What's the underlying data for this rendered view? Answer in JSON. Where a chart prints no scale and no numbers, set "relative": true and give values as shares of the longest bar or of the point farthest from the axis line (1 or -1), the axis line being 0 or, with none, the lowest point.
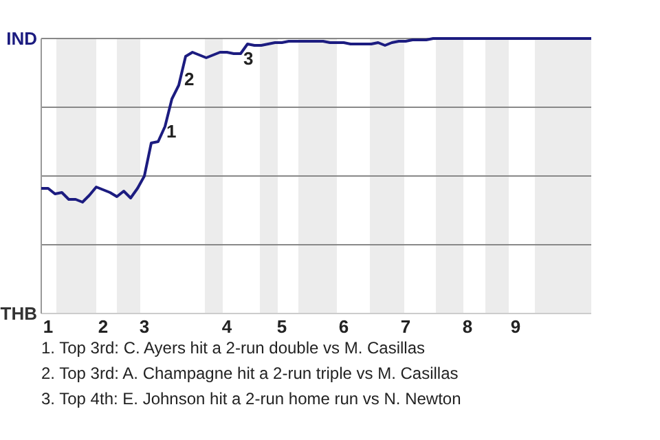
{
  "chart_data": {
    "type": "line",
    "relative": true,
    "categories": [
      null,
      "1",
      null,
      null,
      null,
      null,
      null,
      null,
      null,
      "2",
      null,
      null,
      null,
      null,
      null,
      "3",
      null,
      null,
      null,
      null,
      null,
      null,
      null,
      null,
      null,
      null,
      null,
      "4",
      null,
      null,
      null,
      null,
      null,
      null,
      null,
      "5",
      null,
      null,
      null,
      null,
      null,
      null,
      null,
      null,
      "6",
      null,
      null,
      null,
      null,
      null,
      null,
      null,
      null,
      "7",
      null,
      null,
      null,
      null,
      null,
      null,
      null,
      null,
      "8",
      null,
      null,
      null,
      null,
      null,
      null,
      "9",
      null,
      null,
      null,
      null,
      null,
      null,
      null,
      null,
      null,
      null,
      null
    ],
    "series": [
      {
        "color": "#1c1c80",
        "values": [
          0.455,
          0.455,
          0.435,
          0.44,
          0.415,
          0.415,
          0.405,
          0.43,
          0.46,
          0.45,
          0.44,
          0.425,
          0.445,
          0.42,
          0.455,
          0.5,
          0.62,
          0.625,
          0.68,
          0.78,
          0.83,
          0.935,
          0.95,
          0.94,
          0.93,
          0.94,
          0.95,
          0.95,
          0.945,
          0.945,
          0.98,
          0.975,
          0.975,
          0.98,
          0.985,
          0.985,
          0.99,
          0.99,
          0.99,
          0.99,
          0.99,
          0.99,
          0.985,
          0.985,
          0.985,
          0.98,
          0.98,
          0.98,
          0.98,
          0.985,
          0.975,
          0.985,
          0.99,
          0.99,
          0.995,
          0.995,
          0.995,
          1,
          1,
          1,
          1,
          1,
          1,
          1,
          1,
          1,
          1,
          1,
          1,
          1,
          1,
          1,
          1,
          1,
          1,
          1,
          1,
          1,
          1,
          1,
          1
        ]
      }
    ],
    "grid": "y",
    "annotations": [
      "IND",
      "THB",
      "1",
      "2",
      "3",
      "1. Top 3rd: C. Ayers hit a 2-run double vs M. Casillas",
      "2. Top 3rd: A. Champagne hit a 2-run triple vs M. Casillas",
      "3. Top 4th: E. Johnson hit a 2-run home run vs N. Newton"
    ]
  }
}
